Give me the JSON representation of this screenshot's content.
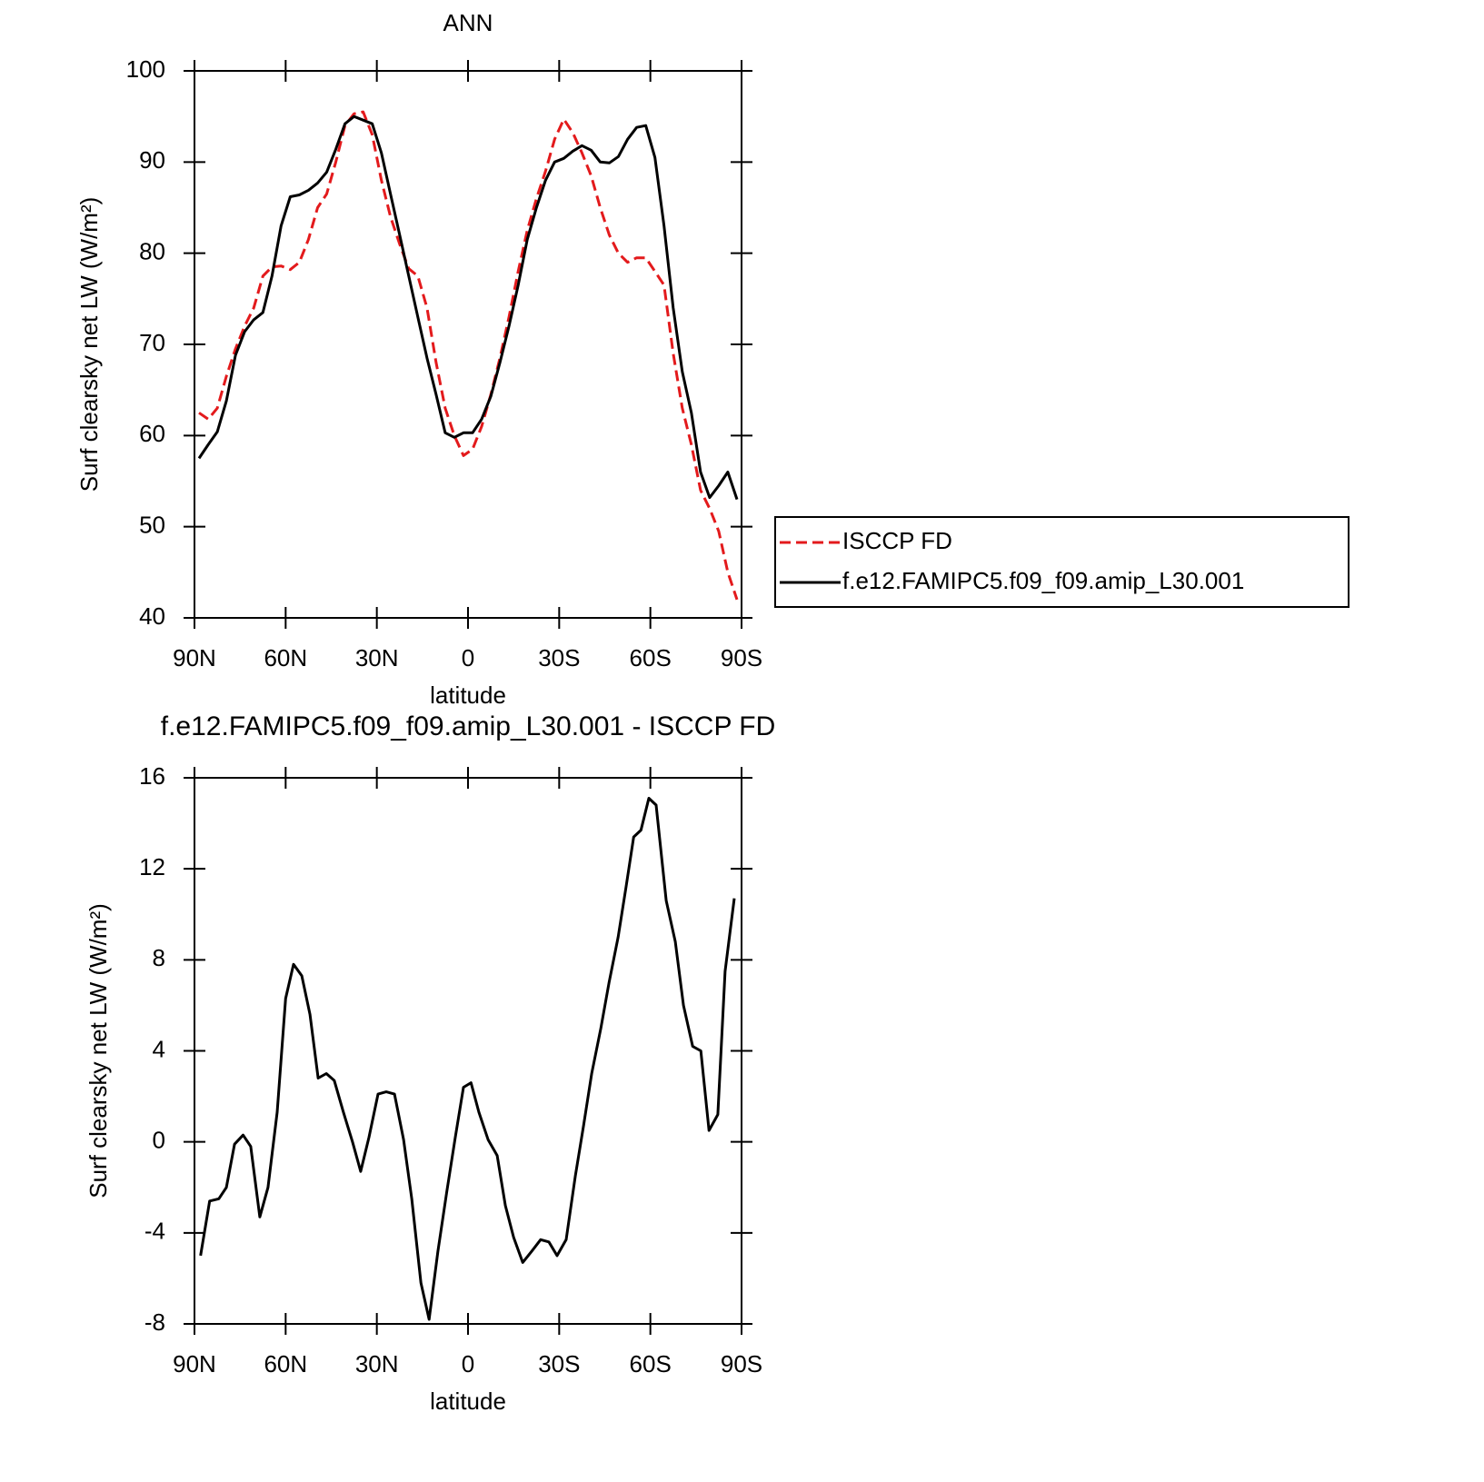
{
  "chart_data": [
    {
      "type": "line",
      "title": "ANN",
      "xlabel": "latitude",
      "ylabel": "Surf clearsky net LW (W/m²)",
      "x": [
        88.5,
        85.5,
        82.5,
        79.5,
        76.5,
        73.5,
        70.5,
        67.5,
        64.5,
        61.5,
        58.5,
        55.5,
        52.5,
        49.5,
        46.5,
        43.5,
        40.5,
        37.5,
        34.5,
        31.5,
        28.5,
        25.5,
        22.5,
        19.5,
        16.5,
        13.5,
        10.5,
        7.5,
        4.5,
        1.5,
        -1.5,
        -4.5,
        -7.5,
        -10.5,
        -13.5,
        -16.5,
        -19.5,
        -22.5,
        -25.5,
        -28.5,
        -31.5,
        -34.5,
        -37.5,
        -40.5,
        -43.5,
        -46.5,
        -49.5,
        -52.5,
        -55.5,
        -58.5,
        -61.5,
        -64.5,
        -67.5,
        -70.5,
        -73.5,
        -76.5,
        -79.5,
        -82.5,
        -85.5,
        -88.5
      ],
      "series": [
        {
          "name": "ISCCP FD",
          "color": "#e31a1c",
          "line_style": "dashed",
          "values": [
            62.5,
            61.8,
            63,
            66.5,
            69.5,
            72,
            74,
            77.5,
            78.5,
            78.6,
            78.2,
            79,
            81.5,
            85,
            86.5,
            90,
            94,
            95.3,
            95.5,
            93,
            88,
            84,
            81,
            78.3,
            77.5,
            74,
            68,
            63,
            60,
            57.8,
            58.5,
            61,
            64.5,
            68.5,
            73,
            78,
            82.5,
            86,
            89,
            92.5,
            94.7,
            93.2,
            91,
            88.5,
            85,
            82,
            80,
            79,
            79.5,
            79.5,
            78,
            76.5,
            69,
            63,
            59,
            54,
            52,
            49.5,
            45,
            42
          ]
        },
        {
          "name": "f.e12.FAMIPC5.f09_f09.amip_L30.001",
          "color": "#000000",
          "line_style": "solid",
          "values": [
            57.5,
            59,
            60.4,
            63.8,
            68.8,
            71.4,
            72.7,
            73.5,
            77.5,
            83,
            86.2,
            86.4,
            86.9,
            87.7,
            88.9,
            91.4,
            94.2,
            95,
            94.6,
            94.2,
            91,
            86.5,
            82,
            77.5,
            73,
            68.5,
            64.5,
            60.3,
            59.8,
            60.3,
            60.3,
            61.8,
            64.3,
            68,
            72,
            76.5,
            81.5,
            85,
            88,
            90,
            90.4,
            91.2,
            91.8,
            91.3,
            90,
            89.9,
            90.6,
            92.5,
            93.8,
            94,
            90.5,
            83,
            74,
            67,
            62.5,
            56,
            53.2,
            54.5,
            56,
            53
          ]
        }
      ],
      "xlim": [
        90,
        -90
      ],
      "xticks": [
        {
          "value": 90,
          "label": "90N"
        },
        {
          "value": 60,
          "label": "60N"
        },
        {
          "value": 30,
          "label": "30N"
        },
        0,
        {
          "value": -30,
          "label": "30S"
        },
        {
          "value": -60,
          "label": "60S"
        },
        {
          "value": -90,
          "label": "90S"
        }
      ],
      "ylim": [
        40,
        100
      ],
      "yticks": [
        40,
        50,
        60,
        70,
        80,
        90,
        100
      ],
      "legend": "right"
    },
    {
      "type": "line",
      "title": "f.e12.FAMIPC5.f09_f09.amip_L30.001 - ISCCP FD",
      "xlabel": "latitude",
      "ylabel": "Surf clearsky net LW (W/m²)",
      "x": [
        88,
        85,
        82,
        79.5,
        76.8,
        74,
        71.5,
        68.5,
        65.8,
        62.8,
        60,
        57.4,
        54.7,
        52,
        49.3,
        46.6,
        44,
        41,
        38,
        35.3,
        32.6,
        29.6,
        26.9,
        24.2,
        21.2,
        18.5,
        15.5,
        12.8,
        9.9,
        7,
        4.2,
        1.5,
        -1,
        -3.6,
        -6.6,
        -9.6,
        -12.3,
        -15,
        -18,
        -21,
        -23.9,
        -26.6,
        -29.3,
        -32.3,
        -35.3,
        -38,
        -40.7,
        -43.7,
        -46.4,
        -49.4,
        -52,
        -54.5,
        -56.9,
        -59.5,
        -61.9,
        -65.2,
        -68.2,
        -70.9,
        -73.9,
        -76.6,
        -79.3,
        -82.2,
        -84.6,
        -87.6
      ],
      "series": [
        {
          "name": "f.e12.FAMIPC5.f09_f09.amip_L30.001 - ISCCP FD",
          "color": "#000000",
          "line_style": "solid",
          "values": [
            -5,
            -2.6,
            -2.5,
            -2,
            -0.1,
            0.3,
            -0.2,
            -3.3,
            -2,
            1.3,
            6.3,
            7.8,
            7.3,
            5.6,
            2.8,
            3,
            2.7,
            1.3,
            0,
            -1.3,
            0.2,
            2.1,
            2.2,
            2.1,
            0.1,
            -2.5,
            -6.2,
            -7.8,
            -4.8,
            -2.2,
            0.2,
            2.4,
            2.6,
            1.3,
            0.1,
            -0.6,
            -2.8,
            -4.2,
            -5.3,
            -4.8,
            -4.3,
            -4.4,
            -5,
            -4.3,
            -1.5,
            0.7,
            3,
            5,
            7,
            9,
            11.2,
            13.4,
            13.7,
            15.1,
            14.8,
            10.6,
            8.8,
            6,
            4.2,
            4,
            0.5,
            1.2,
            7.5,
            10.7
          ]
        }
      ],
      "xlim": [
        90,
        -90
      ],
      "xticks": [
        {
          "value": 90,
          "label": "90N"
        },
        {
          "value": 60,
          "label": "60N"
        },
        {
          "value": 30,
          "label": "30N"
        },
        0,
        {
          "value": -30,
          "label": "30S"
        },
        {
          "value": -60,
          "label": "60S"
        },
        {
          "value": -90,
          "label": "90S"
        }
      ],
      "ylim": [
        -8,
        16
      ],
      "yticks": [
        -8,
        -4,
        0,
        4,
        8,
        12,
        16
      ]
    }
  ]
}
